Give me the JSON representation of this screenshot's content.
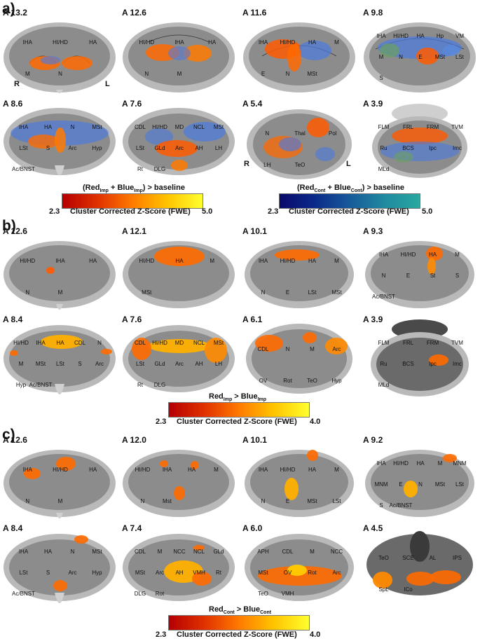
{
  "panels": [
    {
      "letter": "a)",
      "slices": [
        [
          "A 13.2",
          "A 12.6",
          "A 11.6",
          "A 9.8"
        ],
        [
          "A 8.6",
          "A 7.6",
          "A 5.4",
          "A 3.9"
        ]
      ],
      "side_labels": {
        "r_top": "R",
        "l_top": "L",
        "r_bottom": "R",
        "l_bottom": "L"
      },
      "colorbars": [
        {
          "title_main": "(Red",
          "sub1": "Imp",
          "mid": " + Blue",
          "sub2": "Imp",
          "title_end": ") > baseline",
          "min": "2.3",
          "max": "5.0",
          "caption": "Cluster Corrected Z-Score (FWE)"
        },
        {
          "title_main": "(Red",
          "sub1": "Cont",
          "mid": " + Blue",
          "sub2": "Cont",
          "title_end": ") > baseline",
          "min": "2.3",
          "max": "5.0",
          "caption": "Cluster Corrected Z-Score (FWE)"
        }
      ]
    },
    {
      "letter": "b)",
      "slices": [
        [
          "A 12.6",
          "A 12.1",
          "A 10.1",
          "A 9.3"
        ],
        [
          "A 8.4",
          "A 7.6",
          "A 6.1",
          "A 3.9"
        ]
      ],
      "colorbar": {
        "title_main": "Red",
        "sub1": "Imp",
        "mid": " > Blue",
        "sub2": "Imp",
        "min": "2.3",
        "max": "4.0",
        "caption": "Cluster Corrected Z-Score (FWE)"
      }
    },
    {
      "letter": "c)",
      "slices": [
        [
          "A 12.6",
          "A 12.0",
          "A 10.1",
          "A 9.2"
        ],
        [
          "A 8.4",
          "A 7.4",
          "A 6.0",
          "A 4.5"
        ]
      ],
      "colorbar": {
        "title_main": "Red",
        "sub1": "Cont",
        "mid": " > Blue",
        "sub2": "Cont",
        "min": "2.3",
        "max": "4.0",
        "caption": "Cluster Corrected Z-Score (FWE)"
      }
    }
  ],
  "region_labels": {
    "a": [
      [
        "IHA HI/HD HA M N",
        "HI/HD IHA HA N M",
        "IHA HI/HD HA M E N MSt",
        "IHA HI/HD HA Hp VM M N E MSt LSt S"
      ],
      [
        "IHA HA N MSt LSt S Arc Hyp Ac/BNST",
        "CDL HI/HD MD NCL MSt LSt GLd Arc AH LH Rt DLG",
        "N Thal Pol LH TeO",
        "FLM FRL FRM TVM Ru BCS Ipc Imc MLd"
      ]
    ],
    "b": [
      [
        "HI/HD IHA HA N M",
        "HI/HD HA M MSt",
        "IHA HI/HD HA M N E LSt MSt",
        "IHA HI/HD HA M N E St S Ac/BNST"
      ],
      [
        "HI/HD IHA HA CDL N M MSt LSt S Arc Hyp Ac/BNST",
        "CDL HI/HD MD NCL MSt LSt GLd Arc AH LH Rt DLG",
        "CDL N M Arc OV Rot TeO Hyp",
        "FLM FRL FRM TVM Ru BCS Ipc Imc MLd"
      ]
    ],
    "c": [
      [
        "IHA HI/HD HA N M",
        "HI/HD IHA HA M N Mst",
        "IHA HI/HD HA M N E MSt LSt",
        "IHA HI/HD HA M MNM MNM E N MSt LSt S Ac/BNST"
      ],
      [
        "IHA HA N MSt LSt S Arc Hyp Ac/BNST",
        "CDL M NCC NCL GLd MSt Arc AH VMH Rt DLG Rot",
        "APH CDL M NCC MSt OV Rot Arc TeO VMH",
        "TeO SCE AL IPS SpL ICo"
      ]
    ]
  },
  "colors": {
    "red_scale": [
      "#b40000",
      "#e03000",
      "#ff7a00",
      "#ffc400",
      "#ffff30"
    ],
    "blue_scale": [
      "#0a0a6a",
      "#0a2a8a",
      "#175a9a",
      "#1f8aa0",
      "#2aa8a0"
    ],
    "brain_gray": "#8e8e8e"
  }
}
